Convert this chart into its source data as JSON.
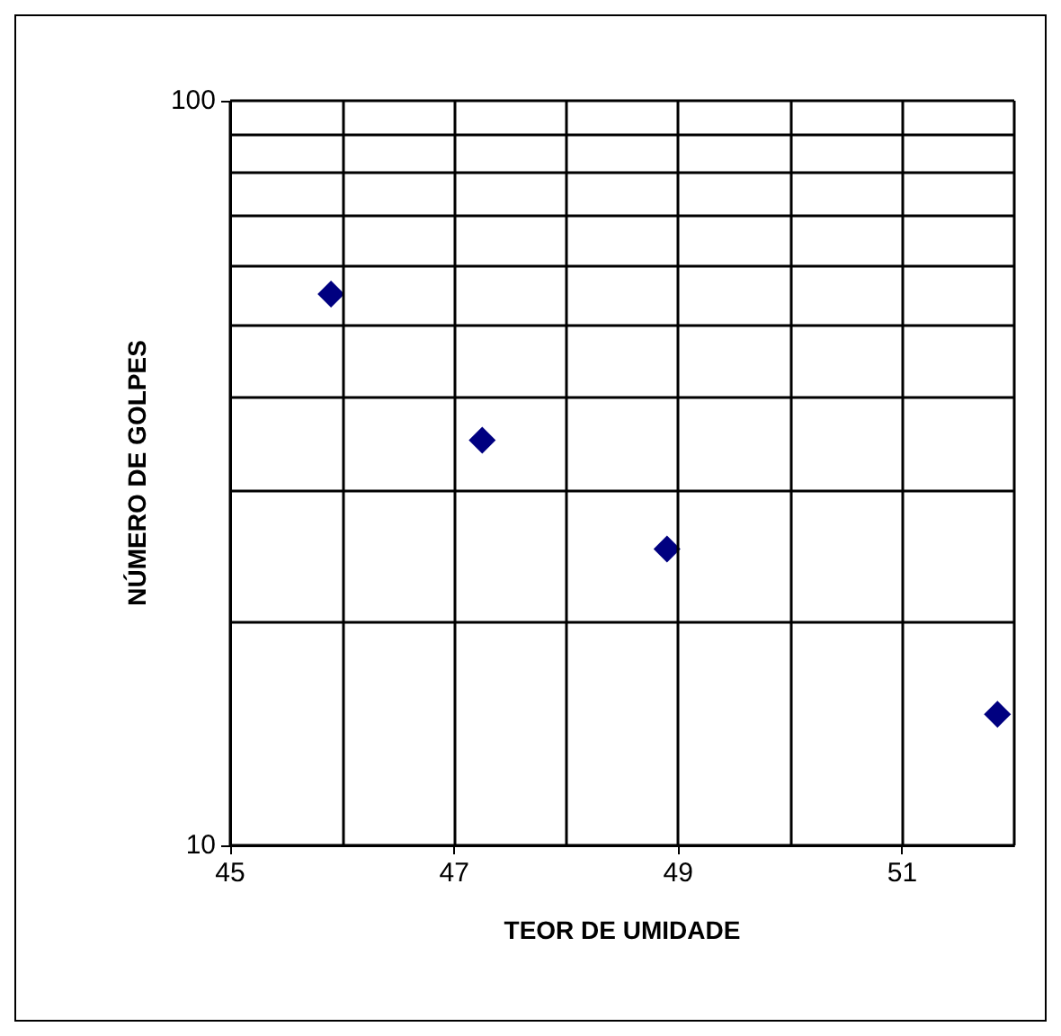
{
  "chart_data": {
    "type": "scatter",
    "xlabel": "TEOR DE UMIDADE",
    "ylabel": "NÚMERO DE GOLPES",
    "x": [
      45.9,
      47.25,
      48.9,
      51.85
    ],
    "series": [
      {
        "color": "#000080",
        "values": [
          55,
          35,
          25,
          15
        ]
      }
    ],
    "xlim": [
      45,
      52
    ],
    "xticks": [
      45,
      {
        "value": 46,
        "label": null
      },
      47,
      {
        "value": 48,
        "label": null
      },
      49,
      {
        "value": 50,
        "label": null
      },
      51,
      {
        "value": 52,
        "label": null
      }
    ],
    "ylim": [
      10,
      100
    ],
    "yticks": [
      10,
      {
        "value": 20,
        "label": null
      },
      {
        "value": 30,
        "label": null
      },
      {
        "value": 40,
        "label": null
      },
      {
        "value": 50,
        "label": null
      },
      {
        "value": 60,
        "label": null
      },
      {
        "value": 70,
        "label": null
      },
      {
        "value": 80,
        "label": null
      },
      {
        "value": 90,
        "label": null
      },
      100
    ],
    "log": "y",
    "grid": true,
    "marker": "diamond"
  }
}
